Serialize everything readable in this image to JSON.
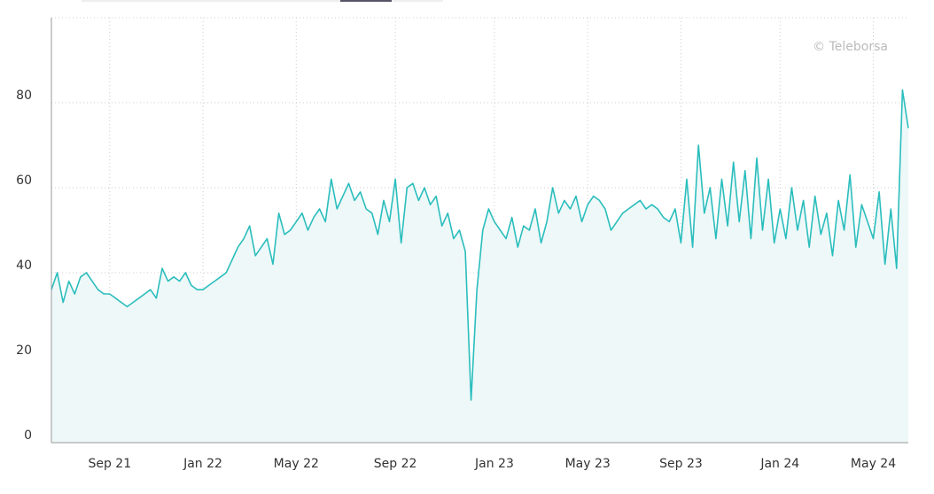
{
  "chart_data": {
    "type": "area",
    "annotation": "© Teleborsa",
    "categories": [
      null,
      null,
      null,
      null,
      null,
      null,
      null,
      null,
      null,
      null,
      "Sep 21",
      null,
      null,
      null,
      null,
      null,
      null,
      null,
      null,
      null,
      null,
      null,
      null,
      null,
      null,
      null,
      "Jan 22",
      null,
      null,
      null,
      null,
      null,
      null,
      null,
      null,
      null,
      null,
      null,
      null,
      null,
      null,
      null,
      "May 22",
      null,
      null,
      null,
      null,
      null,
      null,
      null,
      null,
      null,
      null,
      null,
      null,
      null,
      null,
      null,
      null,
      "Sep 22",
      null,
      null,
      null,
      null,
      null,
      null,
      null,
      null,
      null,
      null,
      null,
      null,
      null,
      null,
      null,
      null,
      "Jan 23",
      null,
      null,
      null,
      null,
      null,
      null,
      null,
      null,
      null,
      null,
      null,
      null,
      null,
      null,
      null,
      "May 23",
      null,
      null,
      null,
      null,
      null,
      null,
      null,
      null,
      null,
      null,
      null,
      null,
      null,
      null,
      null,
      "Sep 23",
      null,
      null,
      null,
      null,
      null,
      null,
      null,
      null,
      null,
      null,
      null,
      null,
      null,
      null,
      null,
      null,
      "Jan 24",
      null,
      null,
      null,
      null,
      null,
      null,
      null,
      null,
      null,
      null,
      null,
      null,
      null,
      null,
      null,
      "May 24",
      null,
      null,
      null,
      null,
      null,
      null
    ],
    "values": [
      36,
      40,
      33,
      38,
      35,
      39,
      40,
      38,
      36,
      35,
      35,
      34,
      33,
      32,
      33,
      34,
      35,
      36,
      34,
      41,
      38,
      39,
      38,
      40,
      37,
      36,
      36,
      37,
      38,
      39,
      40,
      43,
      46,
      48,
      51,
      44,
      46,
      48,
      42,
      54,
      49,
      50,
      52,
      54,
      50,
      53,
      55,
      52,
      62,
      55,
      58,
      61,
      57,
      59,
      55,
      54,
      49,
      57,
      52,
      62,
      47,
      60,
      61,
      57,
      60,
      56,
      58,
      51,
      54,
      48,
      50,
      45,
      10,
      36,
      50,
      55,
      52,
      50,
      48,
      53,
      46,
      51,
      50,
      55,
      47,
      52,
      60,
      54,
      57,
      55,
      58,
      52,
      56,
      58,
      57,
      55,
      50,
      52,
      54,
      55,
      56,
      57,
      55,
      56,
      55,
      53,
      52,
      55,
      47,
      62,
      46,
      70,
      54,
      60,
      48,
      62,
      51,
      66,
      52,
      64,
      48,
      67,
      50,
      62,
      47,
      55,
      48,
      60,
      50,
      57,
      46,
      58,
      49,
      54,
      44,
      57,
      50,
      63,
      46,
      56,
      52,
      48,
      59,
      42,
      55,
      41,
      83,
      74
    ],
    "color": "#2bbdbd",
    "fill": "#eef8f8",
    "ylim": [
      0,
      100
    ],
    "yticks": [
      0,
      20,
      40,
      60,
      80
    ],
    "grid": true
  }
}
